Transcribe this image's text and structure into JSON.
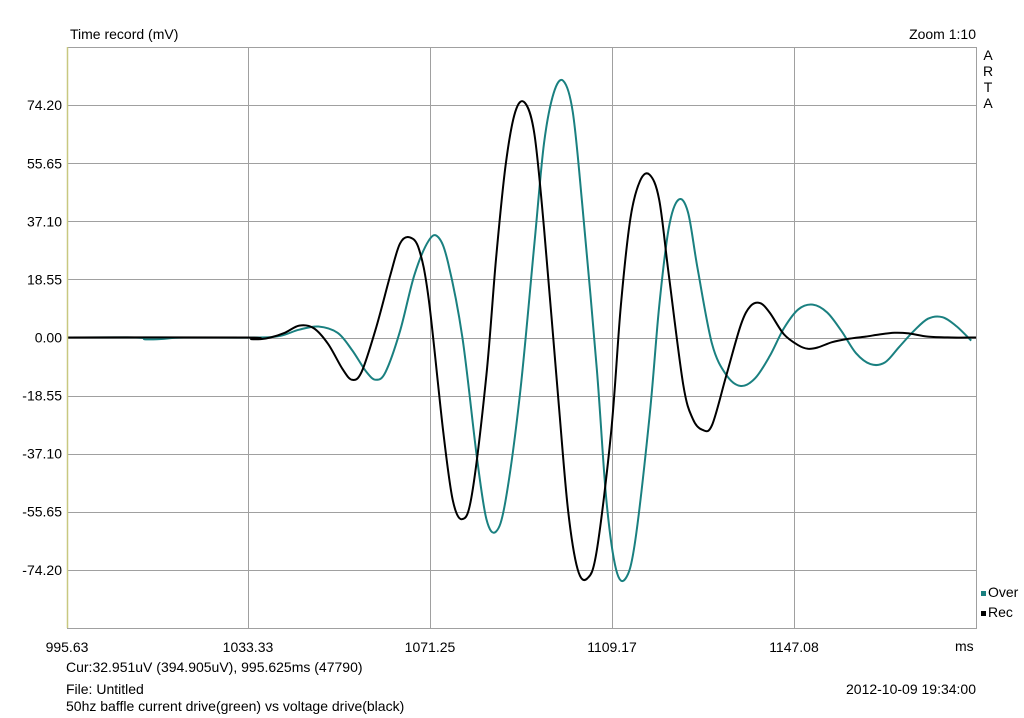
{
  "header": {
    "title": "Time record (mV)",
    "zoom": "Zoom 1:10",
    "brand": [
      "A",
      "R",
      "T",
      "A"
    ]
  },
  "footer": {
    "cursor": "Cur:32.951uV (394.905uV), 995.625ms (47790)",
    "file": "File: Untitled",
    "note": "50hz baffle current drive(green) vs voltage drive(black)",
    "timestamp": "2012-10-09  19:34:00"
  },
  "colors": {
    "over": "#1a8080",
    "rec": "#000000",
    "grid": "#a0a0a0",
    "left_axis": "#c8c880"
  },
  "chart_data": {
    "type": "line",
    "title": "Time record (mV)",
    "xunit": "ms",
    "xlim": [
      995.63,
      1185.0
    ],
    "ylim": [
      -92.8,
      92.8
    ],
    "xticks": [
      995.63,
      1033.33,
      1071.25,
      1109.17,
      1147.08
    ],
    "xtick_labels": [
      "995.63",
      "1033.33",
      "1071.25",
      "1109.17",
      "1147.08"
    ],
    "yticks": [
      74.2,
      55.65,
      37.1,
      18.55,
      0.0,
      -18.55,
      -37.1,
      -55.65,
      -74.2
    ],
    "ytick_labels": [
      "74.20",
      "55.65",
      "37.10",
      "18.55",
      "0.00",
      "-18.55",
      "-37.10",
      "-55.65",
      "-74.20"
    ],
    "grid": true,
    "legend_position": "bottom-right",
    "series": [
      {
        "name": "Over",
        "color": "#1a8080",
        "points": [
          [
            995.63,
            0
          ],
          [
            1010,
            0
          ],
          [
            1012,
            -0.6
          ],
          [
            1016,
            -0.4
          ],
          [
            1020,
            0
          ],
          [
            1035,
            0
          ],
          [
            1040,
            0.5
          ],
          [
            1044,
            2.5
          ],
          [
            1048,
            3.5
          ],
          [
            1052,
            1.5
          ],
          [
            1055,
            -4
          ],
          [
            1058,
            -11
          ],
          [
            1060,
            -13.5
          ],
          [
            1062,
            -11
          ],
          [
            1065,
            2
          ],
          [
            1068,
            20
          ],
          [
            1071,
            31
          ],
          [
            1073,
            32
          ],
          [
            1075,
            24
          ],
          [
            1078,
            0
          ],
          [
            1081,
            -38
          ],
          [
            1083,
            -58
          ],
          [
            1085,
            -62
          ],
          [
            1087,
            -52
          ],
          [
            1090,
            -18
          ],
          [
            1093,
            30
          ],
          [
            1095,
            62
          ],
          [
            1097,
            78
          ],
          [
            1099,
            82
          ],
          [
            1101,
            72
          ],
          [
            1103,
            42
          ],
          [
            1106,
            -10
          ],
          [
            1108,
            -52
          ],
          [
            1110,
            -74
          ],
          [
            1112,
            -77
          ],
          [
            1114,
            -65
          ],
          [
            1117,
            -25
          ],
          [
            1119,
            10
          ],
          [
            1121,
            35
          ],
          [
            1123,
            44
          ],
          [
            1125,
            40
          ],
          [
            1127,
            22
          ],
          [
            1130,
            -2
          ],
          [
            1133,
            -12
          ],
          [
            1136,
            -15.5
          ],
          [
            1139,
            -13
          ],
          [
            1142,
            -6
          ],
          [
            1145,
            3
          ],
          [
            1148,
            9
          ],
          [
            1151,
            10.5
          ],
          [
            1154,
            8
          ],
          [
            1157,
            2
          ],
          [
            1160,
            -5
          ],
          [
            1163,
            -8.5
          ],
          [
            1166,
            -8
          ],
          [
            1169,
            -3
          ],
          [
            1172,
            2
          ],
          [
            1175,
            6
          ],
          [
            1178,
            6.5
          ],
          [
            1181,
            3.5
          ],
          [
            1184,
            -1
          ],
          [
            1187,
            -5
          ],
          [
            1190,
            -6.5
          ],
          [
            1192,
            -6
          ],
          [
            1194,
            -4
          ],
          [
            1196,
            -3.5
          ]
        ]
      },
      {
        "name": "Rec",
        "color": "#000000",
        "points": [
          [
            995.63,
            0
          ],
          [
            1033,
            0
          ],
          [
            1034,
            -0.5
          ],
          [
            1036,
            -0.5
          ],
          [
            1038,
            0
          ],
          [
            1041,
            1.5
          ],
          [
            1044,
            3.8
          ],
          [
            1047,
            3
          ],
          [
            1050,
            -2
          ],
          [
            1053,
            -10
          ],
          [
            1055,
            -13.5
          ],
          [
            1057,
            -11
          ],
          [
            1060,
            3
          ],
          [
            1063,
            20
          ],
          [
            1065,
            30
          ],
          [
            1067,
            32
          ],
          [
            1069,
            28
          ],
          [
            1071,
            12
          ],
          [
            1074,
            -30
          ],
          [
            1076,
            -52
          ],
          [
            1078,
            -58
          ],
          [
            1080,
            -50
          ],
          [
            1083,
            -12
          ],
          [
            1085,
            25
          ],
          [
            1087,
            55
          ],
          [
            1089,
            72
          ],
          [
            1091,
            75
          ],
          [
            1093,
            65
          ],
          [
            1095,
            35
          ],
          [
            1098,
            -20
          ],
          [
            1100,
            -55
          ],
          [
            1102,
            -74
          ],
          [
            1104,
            -77
          ],
          [
            1106,
            -68
          ],
          [
            1109,
            -30
          ],
          [
            1111,
            10
          ],
          [
            1113,
            38
          ],
          [
            1115,
            50
          ],
          [
            1117,
            52
          ],
          [
            1119,
            44
          ],
          [
            1121,
            20
          ],
          [
            1124,
            -15
          ],
          [
            1126,
            -26
          ],
          [
            1128,
            -29.5
          ],
          [
            1130,
            -28
          ],
          [
            1133,
            -12
          ],
          [
            1136,
            4
          ],
          [
            1138,
            10
          ],
          [
            1140,
            11
          ],
          [
            1142,
            8
          ],
          [
            1145,
            1
          ],
          [
            1148,
            -2.5
          ],
          [
            1150,
            -3.6
          ],
          [
            1152,
            -3.2
          ],
          [
            1155,
            -1.5
          ],
          [
            1158,
            -0.5
          ],
          [
            1162,
            0.3
          ],
          [
            1165,
            1
          ],
          [
            1168,
            1.5
          ],
          [
            1171,
            1.3
          ],
          [
            1175,
            0.3
          ],
          [
            1180,
            0
          ],
          [
            1185,
            0
          ],
          [
            1190,
            0
          ],
          [
            1196,
            0
          ]
        ]
      }
    ]
  }
}
